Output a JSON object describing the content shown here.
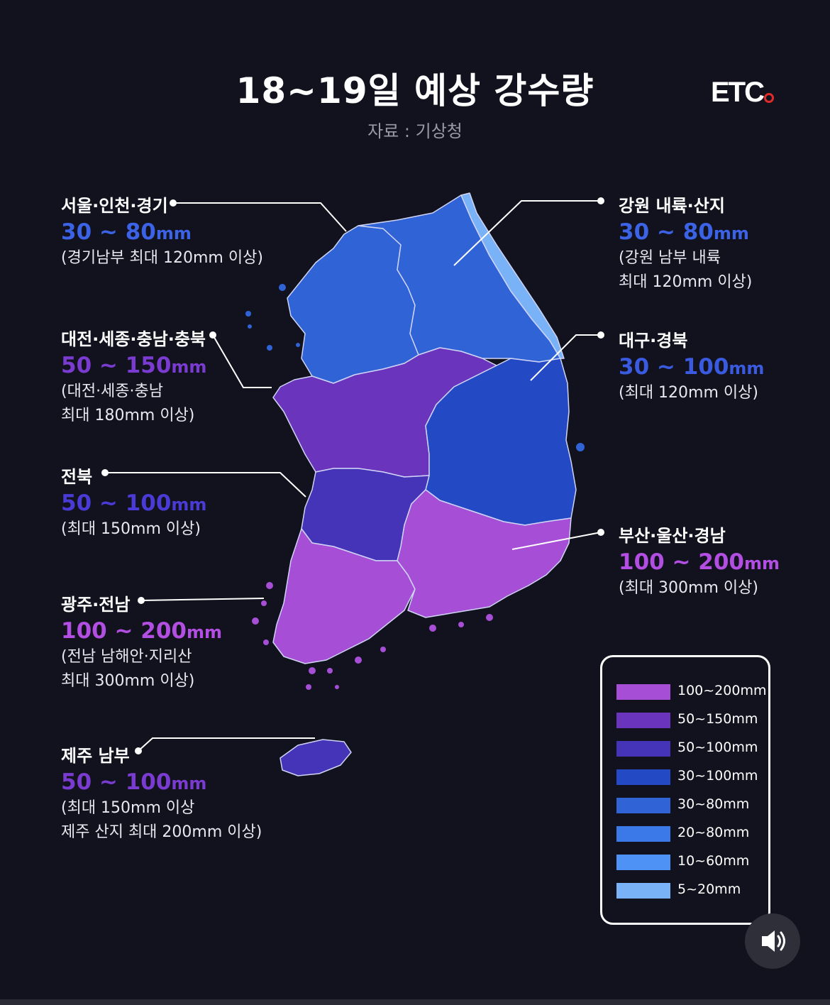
{
  "header": {
    "title": "18~19일 예상 강수량",
    "source": "자료 : 기상청",
    "logo": "ETC"
  },
  "regions": {
    "seoul": {
      "name": "서울·인천·경기",
      "range": "30 ~ 80",
      "unit": "mm",
      "notes": [
        "(경기남부 최대 120mm 이상)"
      ],
      "color": "#3c63e6"
    },
    "gangwon": {
      "name": "강원 내륙·산지",
      "range": "30 ~ 80",
      "unit": "mm",
      "notes": [
        "(강원 남부 내륙",
        "최대 120mm 이상)"
      ],
      "color": "#3c63e6"
    },
    "chungcheong": {
      "name": "대전·세종·충남·충북",
      "range": "50 ~ 150",
      "unit": "mm",
      "notes": [
        "(대전·세종·충남",
        "최대 180mm 이상)"
      ],
      "color": "#7a3bd1"
    },
    "daegu": {
      "name": "대구·경북",
      "range": "30 ~ 100",
      "unit": "mm",
      "notes": [
        "(최대 120mm 이상)"
      ],
      "color": "#3a5ae0"
    },
    "jeonbuk": {
      "name": "전북",
      "range": "50 ~ 100",
      "unit": "mm",
      "notes": [
        "(최대 150mm 이상)"
      ],
      "color": "#4a3bd6"
    },
    "busan": {
      "name": "부산·울산·경남",
      "range": "100 ~ 200",
      "unit": "mm",
      "notes": [
        "(최대 300mm 이상)"
      ],
      "color": "#b24ee2"
    },
    "gwangju": {
      "name": "광주·전남",
      "range": "100 ~ 200",
      "unit": "mm",
      "notes": [
        "(전남 남해안·지리산",
        "최대 300mm 이상)"
      ],
      "color": "#b24ee2"
    },
    "jeju": {
      "name": "제주 남부",
      "range": "50 ~ 100",
      "unit": "mm",
      "notes": [
        "(최대 150mm 이상",
        "제주 산지 최대 200mm 이상)"
      ],
      "color": "#7a3bd1"
    }
  },
  "legend": [
    {
      "label": "100~200mm",
      "color": "#a64fd6"
    },
    {
      "label": "50~150mm",
      "color": "#6a34bd"
    },
    {
      "label": "50~100mm",
      "color": "#4533b8"
    },
    {
      "label": "30~100mm",
      "color": "#2449c4"
    },
    {
      "label": "30~80mm",
      "color": "#2f63d6"
    },
    {
      "label": "20~80mm",
      "color": "#3b79e8"
    },
    {
      "label": "10~60mm",
      "color": "#4f92f5"
    },
    {
      "label": "5~20mm",
      "color": "#79b2f7"
    }
  ],
  "map_colors": {
    "gyeonggi": "#2f63d6",
    "gangwon": "#2f63d6",
    "gangwon_coast": "#79b2f7",
    "chungcheong": "#6a34bd",
    "gyeongbuk": "#2449c4",
    "jeonbuk": "#4533b8",
    "jeonnam": "#a64fd6",
    "gyeongnam": "#a64fd6",
    "jeju": "#4533b8"
  }
}
